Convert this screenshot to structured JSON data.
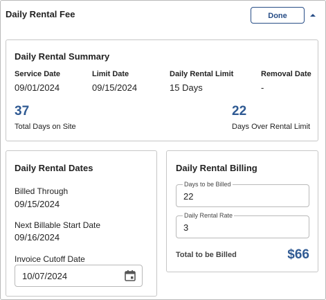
{
  "header": {
    "title": "Daily Rental Fee",
    "done_label": "Done"
  },
  "summary": {
    "title": "Daily Rental Summary",
    "service_date_label": "Service Date",
    "service_date": "09/01/2024",
    "limit_date_label": "Limit Date",
    "limit_date": "09/15/2024",
    "rental_limit_label": "Daily Rental Limit",
    "rental_limit": "15 Days",
    "removal_date_label": "Removal Date",
    "removal_date": "-",
    "total_days": "37",
    "total_days_label": "Total Days on Site",
    "days_over": "22",
    "days_over_label": "Days Over Rental Limit"
  },
  "dates": {
    "title": "Daily Rental Dates",
    "billed_through_label": "Billed Through",
    "billed_through": "09/15/2024",
    "next_start_label": "Next Billable Start Date",
    "next_start": "09/16/2024",
    "cutoff_label": "Invoice Cutoff Date",
    "cutoff_value": "10/07/2024"
  },
  "billing": {
    "title": "Daily Rental Billing",
    "days_label": "Days to be Billed",
    "days_value": "22",
    "rate_label": "Daily Rental Rate",
    "rate_value": "3",
    "total_label": "Total to be Billed",
    "total_value": "$66"
  },
  "colors": {
    "accent": "#2f5a93",
    "button_border": "#274d86",
    "border": "#c6c6c6"
  },
  "icons": {
    "collapse": "caret-up-icon",
    "calendar": "calendar-icon"
  }
}
